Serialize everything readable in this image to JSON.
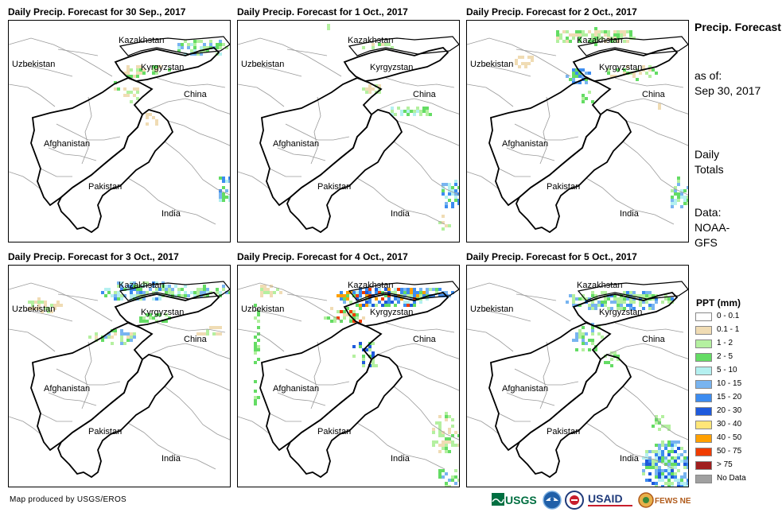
{
  "panels": [
    {
      "title": "Daily Precip. Forecast for 30 Sep., 2017",
      "day": 0
    },
    {
      "title": "Daily Precip. Forecast for 1 Oct., 2017",
      "day": 1
    },
    {
      "title": "Daily Precip. Forecast for 2 Oct., 2017",
      "day": 2
    },
    {
      "title": "Daily Precip. Forecast for 3 Oct., 2017",
      "day": 3
    },
    {
      "title": "Daily Precip. Forecast for 4 Oct., 2017",
      "day": 4
    },
    {
      "title": "Daily Precip. Forecast for 5 Oct., 2017",
      "day": 5
    }
  ],
  "map_labels": {
    "kazakhstan": "Kazakhstan",
    "uzbekistan": "Uzbekistan",
    "kyrgyzstan": "Kyrgyzstan",
    "china": "China",
    "afghanistan": "Afghanistan",
    "pakistan": "Pakistan",
    "india": "India"
  },
  "sidebar": {
    "title": "Precip. Forecast",
    "as_of_label": "as of:",
    "as_of_date": "Sep 30, 2017",
    "daily_totals": "Daily Totals",
    "data_source": "Data: NOAA-GFS"
  },
  "legend": {
    "title": "PPT (mm)",
    "items": [
      {
        "label": "0 - 0.1",
        "color": "#ffffff"
      },
      {
        "label": "0.1 - 1",
        "color": "#f0dcb4"
      },
      {
        "label": "1 - 2",
        "color": "#b4f0a0"
      },
      {
        "label": "2 - 5",
        "color": "#64dc64"
      },
      {
        "label": "5 - 10",
        "color": "#b4f0f0"
      },
      {
        "label": "10 - 15",
        "color": "#78b4f0"
      },
      {
        "label": "15 - 20",
        "color": "#3c8cf0"
      },
      {
        "label": "20 - 30",
        "color": "#1e5adc"
      },
      {
        "label": "30 - 40",
        "color": "#ffe678"
      },
      {
        "label": "40 - 50",
        "color": "#ffa000"
      },
      {
        "label": "50 - 75",
        "color": "#f03c00"
      },
      {
        "label": "> 75",
        "color": "#a01e1e"
      },
      {
        "label": "No Data",
        "color": "#a0a0a0"
      }
    ]
  },
  "credit": "Map produced by USGS/EROS",
  "logos": [
    "usgs-logo",
    "noaa-logo",
    "usaid-seal",
    "usaid-logo",
    "fews-net-logo"
  ],
  "logo_text": {
    "usgs": "USGS",
    "usaid": "USAID",
    "fews": "FEWS NET"
  }
}
